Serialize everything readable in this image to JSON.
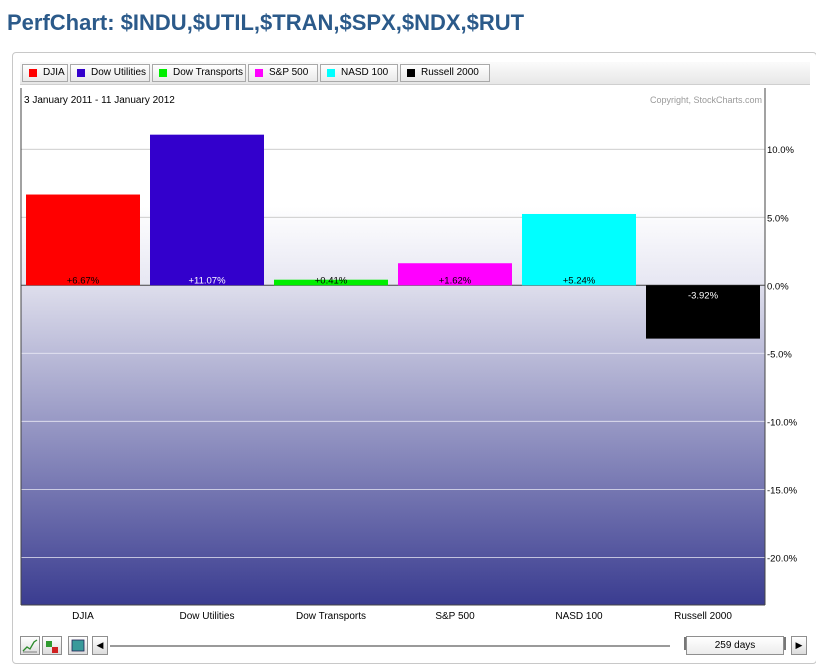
{
  "page": {
    "title": "PerfChart: $INDU,$UTIL,$TRAN,$SPX,$NDX,$RUT"
  },
  "legend": [
    {
      "label": "DJIA",
      "color": "#ff0000"
    },
    {
      "label": "Dow Utilities",
      "color": "#3300cc"
    },
    {
      "label": "Dow Transports",
      "color": "#00ee00"
    },
    {
      "label": "S&P 500",
      "color": "#ff00ff"
    },
    {
      "label": "NASD 100",
      "color": "#00ffff"
    },
    {
      "label": "Russell 2000",
      "color": "#000000"
    }
  ],
  "chart_data": {
    "type": "bar",
    "date_range": "3 January 2011 - 11 January 2012",
    "copyright": "Copyright, StockCharts.com",
    "categories": [
      "DJIA",
      "Dow Utilities",
      "Dow Transports",
      "S&P 500",
      "NASD 100",
      "Russell 2000"
    ],
    "values": [
      6.67,
      11.07,
      0.41,
      1.62,
      5.24,
      -3.92
    ],
    "value_labels": [
      "+6.67%",
      "+11.07%",
      "+0.41%",
      "+1.62%",
      "+5.24%",
      "-3.92%"
    ],
    "colors": [
      "#ff0000",
      "#3300cc",
      "#00ee00",
      "#ff00ff",
      "#00ffff",
      "#000000"
    ],
    "yticks": [
      10,
      5,
      0,
      -5,
      -10,
      -15,
      -20
    ],
    "ytick_labels": [
      "10.0%",
      "5.0%",
      "0.0%",
      "-5.0%",
      "-10.0%",
      "-15.0%",
      "-20.0%"
    ],
    "ylim": [
      -23.5,
      14.5
    ],
    "grid": true
  },
  "controls": {
    "days_label": "259 days",
    "left_arrow": "◀",
    "right_arrow": "▶"
  }
}
